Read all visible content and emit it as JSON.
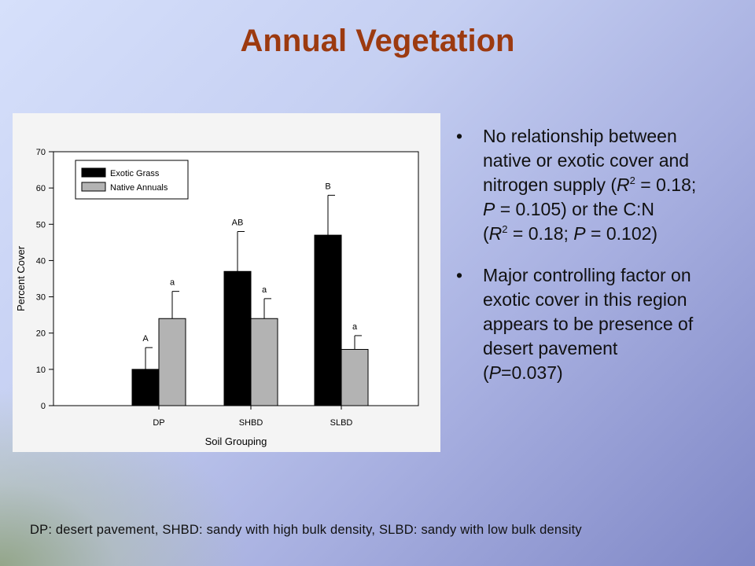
{
  "slide": {
    "title": "Annual Vegetation",
    "bullet_char": "•",
    "bullets": [
      {
        "lines": [
          {
            "parts": [
              {
                "t": "No relationship between"
              }
            ]
          },
          {
            "parts": [
              {
                "t": "native or exotic cover and"
              }
            ]
          },
          {
            "parts": [
              {
                "t": "nitrogen supply ("
              },
              {
                "t": "R",
                "i": true
              },
              {
                "t": "2",
                "sup": true
              },
              {
                "t": " = 0.18;"
              }
            ]
          },
          {
            "parts": [
              {
                "t": "P",
                "i": true
              },
              {
                "t": " = 0.105) or the C:N"
              }
            ]
          },
          {
            "parts": [
              {
                "t": "("
              },
              {
                "t": "R",
                "i": true
              },
              {
                "t": "2",
                "sup": true
              },
              {
                "t": " = 0.18; "
              },
              {
                "t": "P",
                "i": true
              },
              {
                "t": " = 0.102)"
              }
            ]
          }
        ]
      },
      {
        "lines": [
          {
            "parts": [
              {
                "t": "Major controlling factor on"
              }
            ]
          },
          {
            "parts": [
              {
                "t": "exotic cover in this region"
              }
            ]
          },
          {
            "parts": [
              {
                "t": "appears to be presence of"
              }
            ]
          },
          {
            "parts": [
              {
                "t": "desert pavement"
              }
            ]
          },
          {
            "parts": [
              {
                "t": "("
              },
              {
                "t": "P",
                "i": true
              },
              {
                "t": "=0.037)"
              }
            ]
          }
        ]
      }
    ],
    "footnote": "DP: desert pavement, SHBD: sandy with high bulk density, SLBD: sandy with low bulk density"
  },
  "chart_data": {
    "type": "bar",
    "xlabel": "Soil Grouping",
    "ylabel": "Percent Cover",
    "ylim": [
      0,
      70
    ],
    "yticks": [
      0,
      10,
      20,
      30,
      40,
      50,
      60,
      70
    ],
    "categories": [
      "DP",
      "SHBD",
      "SLBD"
    ],
    "legend_position": "top-left",
    "series": [
      {
        "name": "Exotic Grass",
        "color": "#000000",
        "values": [
          10,
          37,
          47
        ],
        "errors": [
          6,
          11,
          11
        ],
        "letters": [
          "A",
          "AB",
          "B"
        ]
      },
      {
        "name": "Native Annuals",
        "color": "#b3b3b3",
        "values": [
          24,
          24,
          15.5
        ],
        "errors": [
          7.5,
          5.5,
          3.8
        ],
        "letters": [
          "a",
          "a",
          "a"
        ]
      }
    ]
  }
}
